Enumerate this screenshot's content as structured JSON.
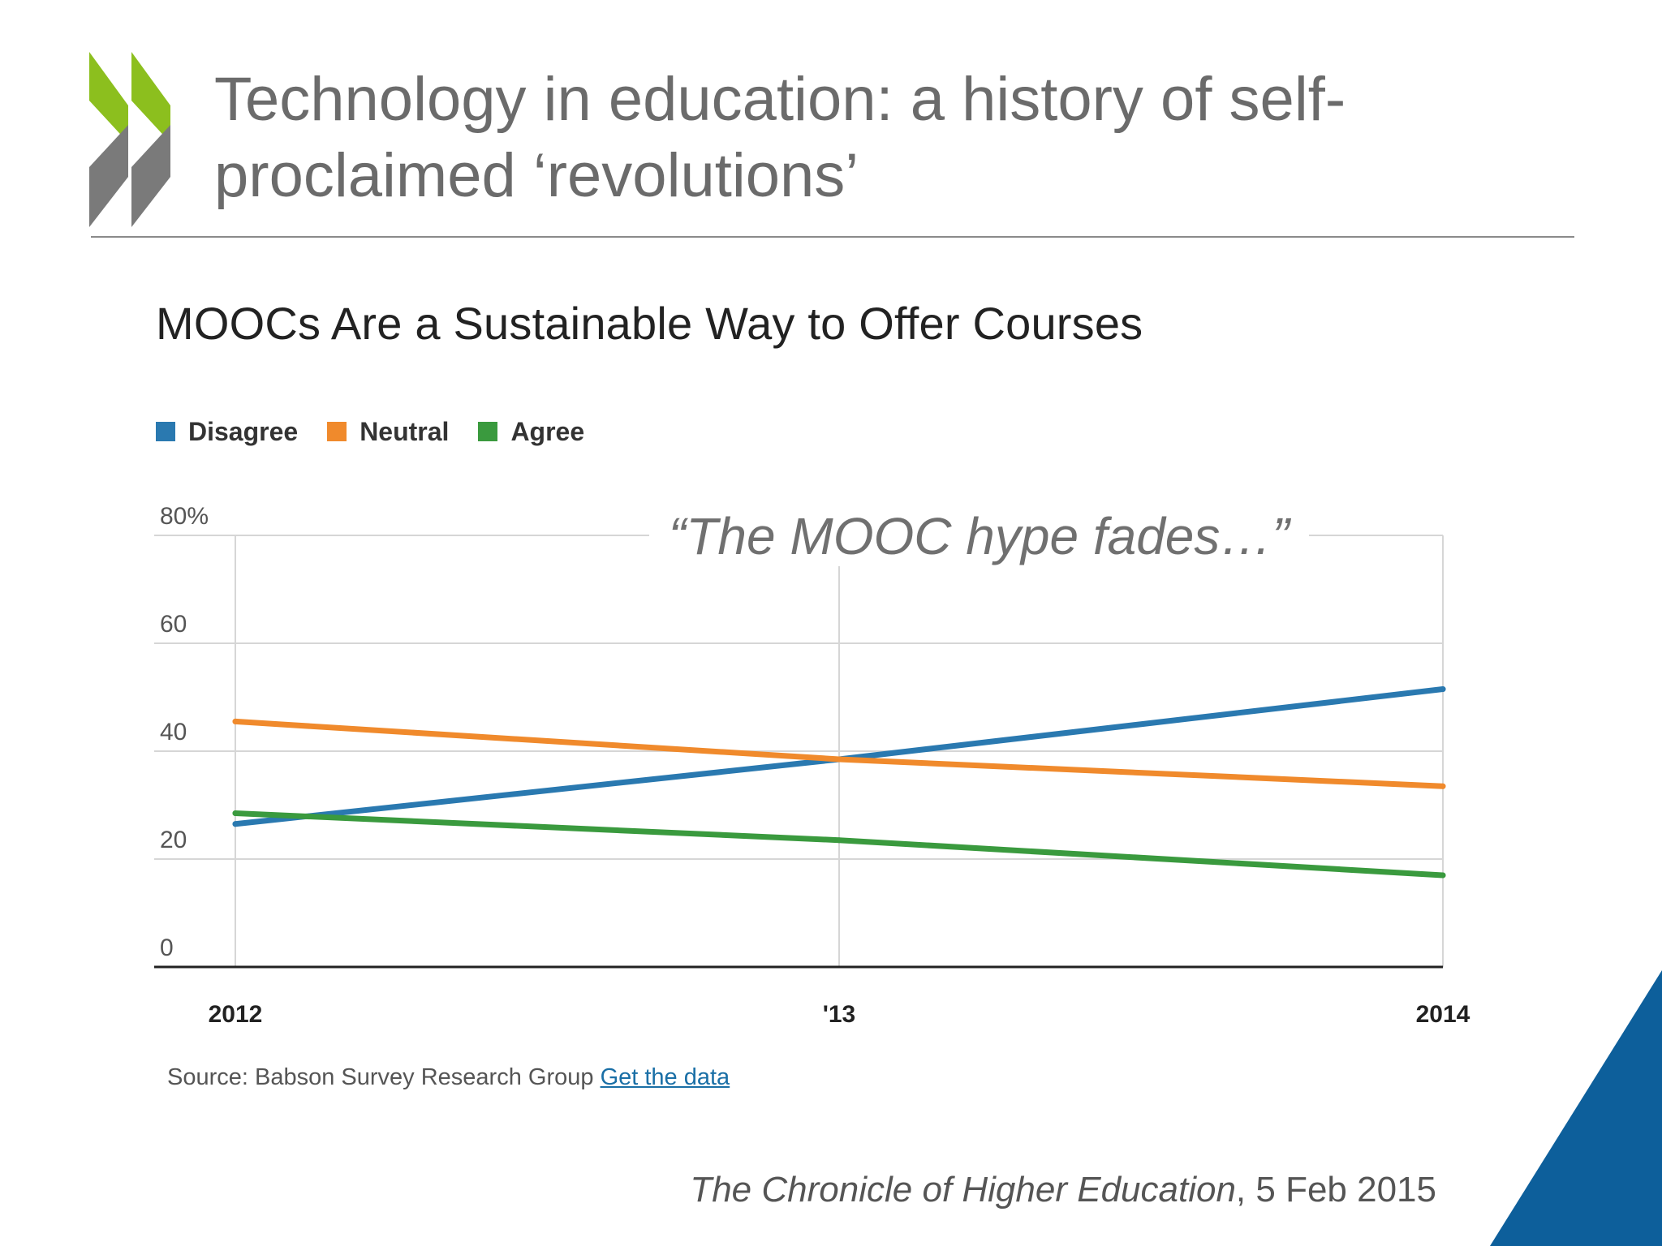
{
  "slide": {
    "title": "Technology in education: a history of self-proclaimed ‘revolutions’",
    "callout": "“The MOOC hype fades…”",
    "source_prefix": "Source: Babson Survey Research Group",
    "source_link": "Get the data",
    "citation_publication": "The Chronicle of Higher Education",
    "citation_date": ", 5 Feb 2015"
  },
  "colors": {
    "disagree": "#2a79b0",
    "neutral": "#f08a2c",
    "agree": "#3a9a3e",
    "logo_green": "#8cbf1e",
    "logo_gray": "#7a7a7a",
    "corner_blue": "#0d5f9b"
  },
  "icons": {
    "logo": "oecd-chevron-logo-icon"
  },
  "chart_data": {
    "type": "line",
    "title": "MOOCs Are a Sustainable Way to Offer Courses",
    "categories": [
      "2012",
      "'13",
      "2014"
    ],
    "series": [
      {
        "name": "Disagree",
        "values": [
          26.5,
          38.5,
          51.5
        ]
      },
      {
        "name": "Neutral",
        "values": [
          45.5,
          38.5,
          33.5
        ]
      },
      {
        "name": "Agree",
        "values": [
          28.5,
          23.5,
          17.0
        ]
      }
    ],
    "y_ticks": [
      "0",
      "20",
      "40",
      "60",
      "80%"
    ],
    "ylim": [
      0,
      80
    ],
    "xlabel": "",
    "ylabel": "",
    "grid": true,
    "legend": "top-left"
  }
}
